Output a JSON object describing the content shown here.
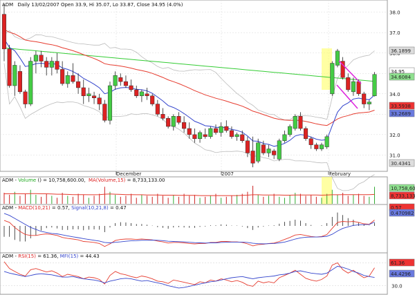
{
  "chart_data": {
    "type": "candlestick",
    "ticker": "ADM",
    "header": {
      "symbol": "ADM",
      "text": "Daily 13/02/2007 Open 33.9, Hi 35.07, Lo 33.87, Close 34.95 (4.0%)"
    },
    "price_axis": {
      "min": 30.2,
      "max": 38.6,
      "ticks": [
        "38.0",
        "37.0",
        "36.0",
        "35.0",
        "34.0",
        "33.0",
        "32.0",
        "31.0"
      ]
    },
    "price_badges": [
      {
        "label": "36.1899",
        "value": 36.19,
        "color": "#dddddd"
      },
      {
        "label": "34.95",
        "value": 34.95,
        "color": "#ffffff"
      },
      {
        "label": "34.6084",
        "value": 34.61,
        "color": "#8fe08f"
      },
      {
        "label": "33.5938",
        "value": 33.59,
        "color": "#ee3333"
      },
      {
        "label": "33.2689",
        "value": 33.27,
        "color": "#6a7ae0"
      },
      {
        "label": "30.4341",
        "value": 30.43,
        "color": "#dddddd"
      }
    ],
    "x_labels": [
      "December",
      "2007",
      "February"
    ],
    "candles": [
      [
        37.9,
        38.4,
        35.6,
        36.2
      ],
      [
        36.2,
        36.4,
        34.3,
        34.4
      ],
      [
        34.4,
        35.6,
        33.9,
        35.4
      ],
      [
        35.1,
        35.4,
        34.0,
        34.1
      ],
      [
        34.1,
        34.2,
        33.3,
        33.5
      ],
      [
        33.5,
        35.8,
        33.4,
        35.6
      ],
      [
        35.6,
        36.1,
        35.0,
        35.9
      ],
      [
        35.9,
        36.1,
        35.3,
        35.6
      ],
      [
        35.6,
        35.8,
        34.9,
        35.3
      ],
      [
        35.3,
        35.8,
        34.9,
        35.6
      ],
      [
        35.6,
        36.0,
        35.0,
        35.2
      ],
      [
        35.2,
        35.6,
        34.4,
        34.5
      ],
      [
        34.5,
        35.1,
        34.3,
        34.9
      ],
      [
        34.9,
        35.5,
        34.5,
        34.6
      ],
      [
        34.6,
        35.0,
        34.0,
        34.3
      ],
      [
        34.3,
        34.7,
        33.5,
        33.9
      ],
      [
        33.9,
        34.3,
        33.6,
        34.0
      ],
      [
        33.9,
        34.1,
        33.5,
        33.8
      ],
      [
        33.8,
        34.0,
        33.2,
        33.5
      ],
      [
        33.5,
        33.7,
        32.6,
        32.7
      ],
      [
        32.7,
        34.6,
        32.5,
        34.4
      ],
      [
        34.4,
        35.1,
        34.2,
        34.9
      ],
      [
        34.8,
        35.0,
        34.4,
        34.6
      ],
      [
        34.6,
        34.9,
        34.3,
        34.4
      ],
      [
        34.4,
        34.7,
        34.1,
        34.2
      ],
      [
        34.2,
        34.4,
        33.8,
        33.9
      ],
      [
        33.9,
        34.2,
        33.6,
        34.1
      ],
      [
        34.0,
        34.3,
        33.7,
        33.9
      ],
      [
        33.9,
        34.0,
        33.4,
        33.5
      ],
      [
        33.5,
        33.7,
        32.9,
        33.0
      ],
      [
        33.0,
        33.3,
        32.7,
        32.8
      ],
      [
        32.8,
        32.9,
        32.3,
        32.4
      ],
      [
        32.4,
        33.0,
        32.2,
        32.9
      ],
      [
        32.9,
        33.1,
        32.5,
        32.6
      ],
      [
        32.6,
        32.9,
        32.1,
        32.3
      ],
      [
        32.3,
        32.6,
        31.8,
        32.0
      ],
      [
        32.0,
        32.3,
        31.6,
        31.8
      ],
      [
        31.8,
        32.2,
        31.6,
        32.1
      ],
      [
        32.0,
        32.3,
        31.8,
        31.9
      ],
      [
        31.9,
        32.4,
        31.8,
        32.3
      ],
      [
        32.3,
        32.5,
        32.0,
        32.1
      ],
      [
        32.1,
        32.6,
        31.9,
        32.4
      ],
      [
        32.4,
        32.7,
        32.1,
        32.2
      ],
      [
        32.2,
        32.4,
        31.8,
        31.9
      ],
      [
        31.9,
        32.1,
        31.7,
        32.0
      ],
      [
        32.0,
        32.2,
        31.6,
        31.7
      ],
      [
        31.7,
        31.9,
        30.9,
        31.1
      ],
      [
        31.2,
        31.9,
        30.4,
        30.6
      ],
      [
        30.7,
        31.8,
        30.6,
        31.6
      ],
      [
        31.5,
        31.7,
        31.0,
        31.1
      ],
      [
        31.1,
        31.5,
        30.9,
        31.3
      ],
      [
        31.2,
        31.3,
        30.8,
        31.0
      ],
      [
        30.8,
        31.8,
        30.7,
        31.7
      ],
      [
        31.7,
        32.2,
        31.6,
        32.0
      ],
      [
        32.0,
        32.5,
        31.9,
        32.4
      ],
      [
        32.3,
        33.0,
        32.2,
        32.9
      ],
      [
        32.9,
        33.1,
        32.2,
        32.3
      ],
      [
        32.3,
        32.4,
        31.7,
        31.8
      ],
      [
        31.8,
        31.9,
        31.3,
        31.5
      ],
      [
        31.5,
        31.6,
        31.2,
        31.3
      ],
      [
        31.3,
        31.6,
        31.2,
        31.5
      ],
      [
        31.4,
        32.0,
        31.3,
        31.9
      ],
      [
        34.0,
        35.6,
        33.9,
        35.5
      ],
      [
        35.4,
        36.2,
        35.3,
        36.1
      ],
      [
        35.6,
        35.8,
        34.7,
        34.8
      ],
      [
        34.8,
        35.0,
        34.1,
        34.2
      ],
      [
        34.1,
        34.8,
        33.9,
        34.6
      ],
      [
        34.6,
        34.7,
        33.9,
        34.0
      ],
      [
        34.0,
        34.1,
        33.3,
        33.5
      ],
      [
        33.5,
        33.7,
        33.2,
        33.6
      ],
      [
        33.9,
        35.07,
        33.87,
        34.95
      ]
    ],
    "volume_panel": {
      "legend": {
        "name": "ADM - Volume",
        "prefix": "ADM - ",
        "vol_label": "Volume",
        "vol_value": "() = 10,758,600.00,",
        "ma_label": "MA(Volume,15)",
        "ma_value": " = 8,733,133.00"
      },
      "badges": [
        {
          "label": "10,758,600",
          "color": "#8fe08f"
        },
        {
          "label": "8,733,133",
          "color": "#ee3333"
        }
      ],
      "bars": [
        0.55,
        0.45,
        0.6,
        0.4,
        0.5,
        0.7,
        0.45,
        0.35,
        0.5,
        0.4,
        0.3,
        0.55,
        0.4,
        0.35,
        0.5,
        0.45,
        0.3,
        0.4,
        0.5,
        0.85,
        0.6,
        0.45,
        0.35,
        0.4,
        0.5,
        0.3,
        0.45,
        0.4,
        0.35,
        0.5,
        0.4,
        0.3,
        0.45,
        0.35,
        0.5,
        0.4,
        0.45,
        0.3,
        0.35,
        0.4,
        0.5,
        0.3,
        0.35,
        0.4,
        0.45,
        0.5,
        0.6,
        0.9,
        0.45,
        0.35,
        0.4,
        0.5,
        0.35,
        0.3,
        0.45,
        0.55,
        0.5,
        0.4,
        0.45,
        0.35,
        0.3,
        0.5,
        0.7,
        0.45,
        0.55,
        0.4,
        0.45,
        0.5,
        0.4,
        0.35,
        0.85
      ],
      "ma": [
        0.5,
        0.5,
        0.51,
        0.5,
        0.5,
        0.51,
        0.51,
        0.5,
        0.5,
        0.49,
        0.48,
        0.48,
        0.47,
        0.46,
        0.46,
        0.46,
        0.45,
        0.45,
        0.46,
        0.48,
        0.49,
        0.48,
        0.47,
        0.46,
        0.46,
        0.45,
        0.45,
        0.44,
        0.44,
        0.44,
        0.43,
        0.43,
        0.43,
        0.42,
        0.42,
        0.42,
        0.42,
        0.41,
        0.41,
        0.41,
        0.41,
        0.41,
        0.41,
        0.41,
        0.41,
        0.42,
        0.43,
        0.45,
        0.45,
        0.44,
        0.44,
        0.44,
        0.44,
        0.43,
        0.43,
        0.44,
        0.44,
        0.44,
        0.44,
        0.44,
        0.43,
        0.44,
        0.45,
        0.45,
        0.46,
        0.46,
        0.46,
        0.46,
        0.46,
        0.46,
        0.47
      ]
    },
    "macd_panel": {
      "legend": {
        "prefix": "ADM - ",
        "macd_label": "MACD(10,21)",
        "macd_value": " = 0.57, ",
        "signal_label": "Signal(10,21,8)",
        "signal_value": " = 0.47"
      },
      "badges": [
        {
          "label": "0.57",
          "color": "#ee3333"
        },
        {
          "label": "0.470982",
          "color": "#6a7ae0"
        }
      ],
      "range": [
        -1.0,
        1.0
      ],
      "macd": [
        0.55,
        0.45,
        0.2,
        0.0,
        -0.15,
        -0.2,
        -0.2,
        -0.15,
        -0.12,
        -0.15,
        -0.2,
        -0.3,
        -0.35,
        -0.38,
        -0.42,
        -0.5,
        -0.52,
        -0.55,
        -0.6,
        -0.75,
        -0.62,
        -0.45,
        -0.4,
        -0.38,
        -0.38,
        -0.4,
        -0.38,
        -0.4,
        -0.42,
        -0.48,
        -0.52,
        -0.58,
        -0.55,
        -0.55,
        -0.57,
        -0.6,
        -0.62,
        -0.6,
        -0.6,
        -0.55,
        -0.55,
        -0.5,
        -0.5,
        -0.52,
        -0.52,
        -0.55,
        -0.62,
        -0.72,
        -0.66,
        -0.64,
        -0.6,
        -0.58,
        -0.5,
        -0.4,
        -0.3,
        -0.18,
        -0.15,
        -0.2,
        -0.25,
        -0.28,
        -0.25,
        -0.15,
        0.15,
        0.45,
        0.5,
        0.48,
        0.5,
        0.45,
        0.38,
        0.36,
        0.57
      ],
      "signal": [
        0.9,
        0.8,
        0.65,
        0.5,
        0.35,
        0.2,
        0.1,
        0.0,
        -0.05,
        -0.1,
        -0.12,
        -0.17,
        -0.22,
        -0.27,
        -0.31,
        -0.36,
        -0.4,
        -0.44,
        -0.48,
        -0.55,
        -0.57,
        -0.54,
        -0.52,
        -0.49,
        -0.47,
        -0.46,
        -0.44,
        -0.44,
        -0.43,
        -0.44,
        -0.46,
        -0.49,
        -0.5,
        -0.51,
        -0.52,
        -0.54,
        -0.56,
        -0.57,
        -0.58,
        -0.57,
        -0.57,
        -0.55,
        -0.54,
        -0.53,
        -0.53,
        -0.53,
        -0.55,
        -0.59,
        -0.61,
        -0.62,
        -0.61,
        -0.6,
        -0.57,
        -0.53,
        -0.46,
        -0.38,
        -0.32,
        -0.29,
        -0.28,
        -0.28,
        -0.27,
        -0.24,
        -0.14,
        0.02,
        0.15,
        0.23,
        0.3,
        0.33,
        0.34,
        0.35,
        0.47
      ]
    },
    "rsi_panel": {
      "legend": {
        "prefix": "ADM - ",
        "rsi_label": "RSI(15)",
        "rsi_value": " = 61.36, ",
        "mfi_label": "MFI(15)",
        "mfi_value": " = 44.43"
      },
      "levels": [
        "70.0",
        "30.0"
      ],
      "range": [
        15,
        85
      ],
      "badges": [
        {
          "label": "61.36",
          "color": "#ee3333"
        },
        {
          "label": "44.4296",
          "color": "#6a7ae0"
        }
      ],
      "rsi": [
        72,
        60,
        55,
        50,
        47,
        58,
        60,
        57,
        54,
        56,
        52,
        46,
        50,
        48,
        46,
        42,
        45,
        44,
        41,
        33,
        48,
        55,
        51,
        49,
        46,
        44,
        47,
        45,
        42,
        38,
        37,
        34,
        40,
        38,
        36,
        34,
        32,
        37,
        35,
        40,
        38,
        42,
        40,
        37,
        39,
        36,
        31,
        29,
        38,
        35,
        37,
        35,
        44,
        48,
        52,
        57,
        50,
        43,
        40,
        38,
        41,
        47,
        66,
        70,
        58,
        52,
        57,
        50,
        44,
        47,
        61.36
      ],
      "mfi": [
        55,
        52,
        50,
        48,
        46,
        48,
        50,
        51,
        50,
        49,
        47,
        45,
        45,
        46,
        44,
        42,
        41,
        40,
        38,
        35,
        38,
        40,
        42,
        43,
        42,
        40,
        38,
        39,
        37,
        35,
        33,
        30,
        28,
        26,
        27,
        29,
        31,
        33,
        35,
        37,
        38,
        40,
        42,
        44,
        45,
        46,
        44,
        42,
        44,
        45,
        46,
        47,
        49,
        50,
        52,
        55,
        56,
        54,
        52,
        51,
        50,
        52,
        58,
        64,
        62,
        59,
        55,
        52,
        48,
        46,
        44.43
      ]
    }
  }
}
